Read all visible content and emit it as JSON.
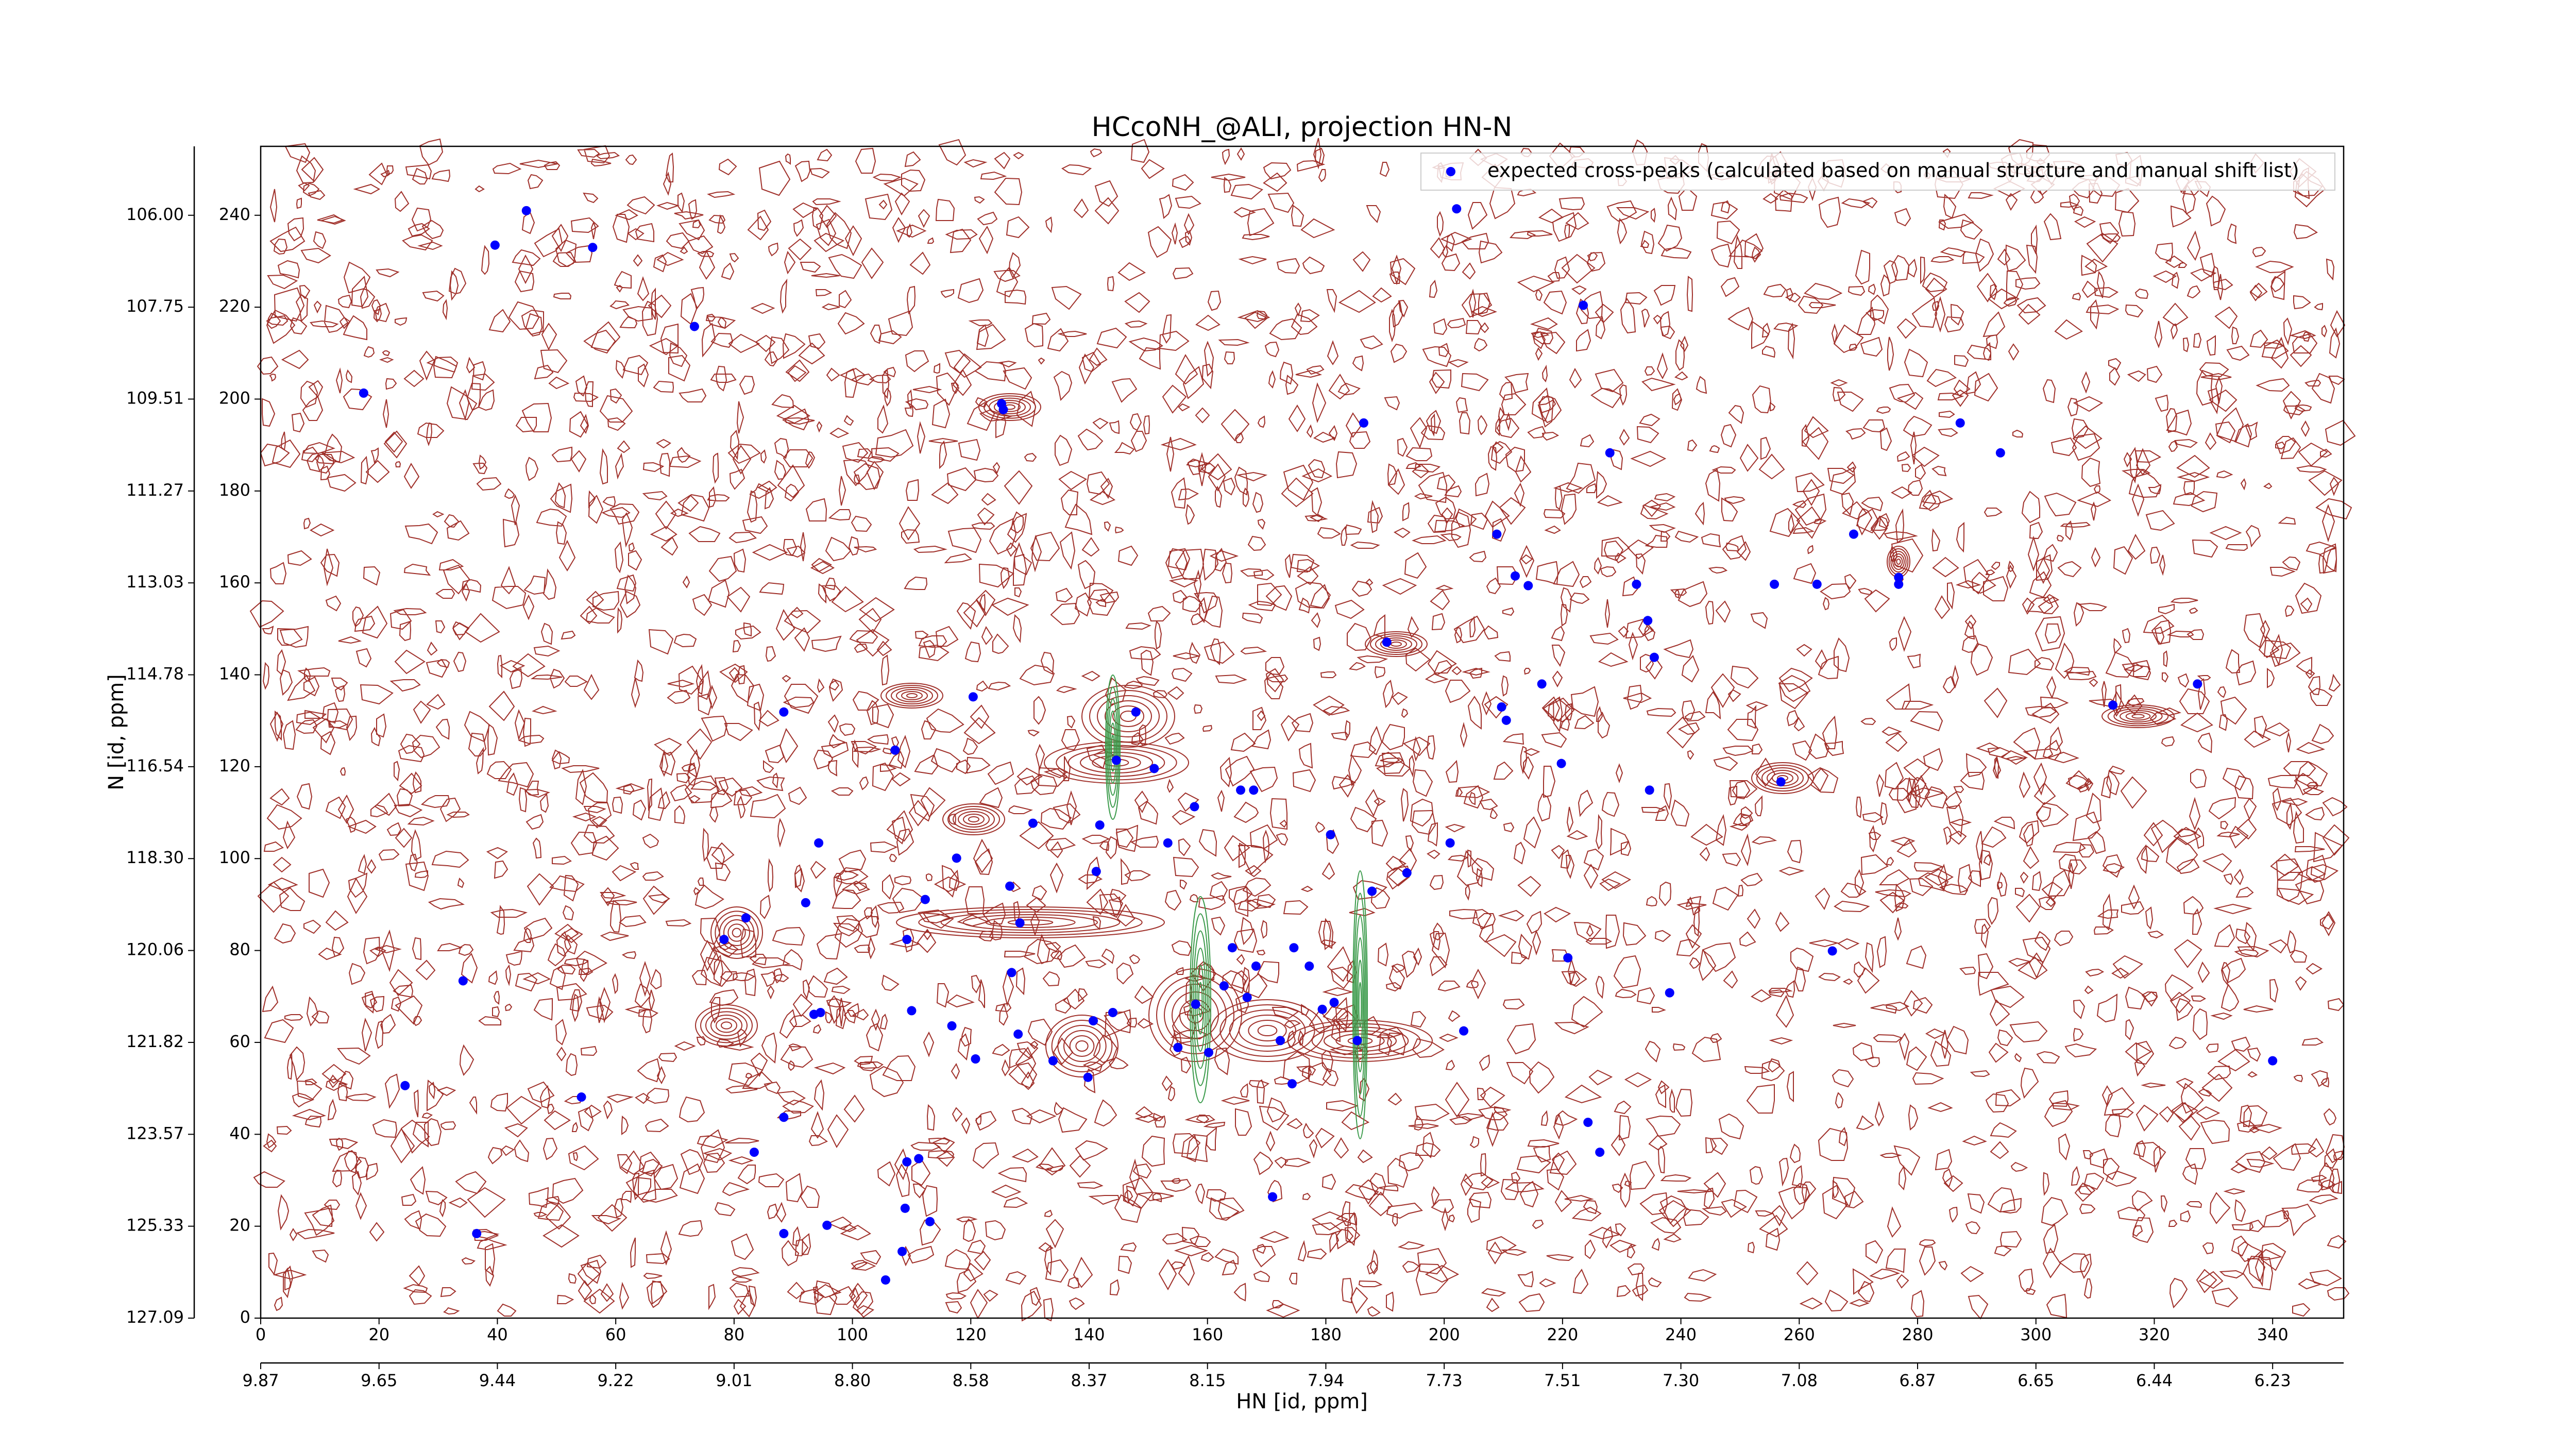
{
  "chart_data": {
    "type": "scatter",
    "title": "HCcoNH_@ALI, projection HN-N",
    "xlabel": "HN [id, ppm]",
    "ylabel": "N [id, ppm]",
    "xlim": [
      0,
      352
    ],
    "ylim": [
      0,
      255
    ],
    "xticks": [
      0,
      20,
      40,
      60,
      80,
      100,
      120,
      140,
      160,
      180,
      200,
      220,
      240,
      260,
      280,
      300,
      320,
      340
    ],
    "yticks": [
      0,
      20,
      40,
      60,
      80,
      100,
      120,
      140,
      160,
      180,
      200,
      220,
      240
    ],
    "x2ticks": [
      {
        "value": 0,
        "label": "9.87"
      },
      {
        "value": 20,
        "label": "9.65"
      },
      {
        "value": 40,
        "label": "9.44"
      },
      {
        "value": 60,
        "label": "9.22"
      },
      {
        "value": 80,
        "label": "9.01"
      },
      {
        "value": 100,
        "label": "8.80"
      },
      {
        "value": 120,
        "label": "8.58"
      },
      {
        "value": 140,
        "label": "8.37"
      },
      {
        "value": 160,
        "label": "8.15"
      },
      {
        "value": 180,
        "label": "7.94"
      },
      {
        "value": 200,
        "label": "7.73"
      },
      {
        "value": 220,
        "label": "7.51"
      },
      {
        "value": 240,
        "label": "7.30"
      },
      {
        "value": 260,
        "label": "7.08"
      },
      {
        "value": 280,
        "label": "6.87"
      },
      {
        "value": 300,
        "label": "6.65"
      },
      {
        "value": 320,
        "label": "6.44"
      },
      {
        "value": 340,
        "label": "6.23"
      }
    ],
    "y2ticks": [
      {
        "value": 0,
        "label": "127.09"
      },
      {
        "value": 20,
        "label": "125.33"
      },
      {
        "value": 40,
        "label": "123.57"
      },
      {
        "value": 60,
        "label": "121.82"
      },
      {
        "value": 80,
        "label": "120.06"
      },
      {
        "value": 100,
        "label": "118.30"
      },
      {
        "value": 120,
        "label": "116.54"
      },
      {
        "value": 140,
        "label": "114.78"
      },
      {
        "value": 160,
        "label": "113.03"
      },
      {
        "value": 180,
        "label": "111.27"
      },
      {
        "value": 200,
        "label": "109.51"
      },
      {
        "value": 220,
        "label": "107.75"
      },
      {
        "value": 240,
        "label": "106.00"
      }
    ],
    "legend": "upper right",
    "x": [
      44.9,
      39.6,
      56.1,
      73.3,
      17.4,
      125.2,
      125.5,
      186.4,
      223.5,
      228.0,
      202.1,
      287.2,
      294.0,
      208.9,
      212.0,
      214.2,
      232.5,
      255.8,
      263.0,
      269.2,
      276.8,
      276.8,
      234.4,
      235.5,
      190.3,
      216.5,
      327.3,
      313.0,
      209.7,
      210.5,
      120.4,
      88.4,
      107.2,
      147.9,
      144.6,
      151.0,
      219.8,
      256.9,
      165.6,
      167.8,
      157.8,
      234.7,
      141.8,
      130.5,
      94.3,
      153.3,
      180.8,
      201.0,
      117.6,
      141.2,
      193.7,
      187.8,
      126.6,
      112.3,
      92.1,
      128.3,
      82.0,
      78.3,
      109.2,
      164.2,
      174.6,
      265.6,
      220.9,
      168.2,
      177.2,
      126.9,
      34.2,
      162.8,
      166.7,
      238.1,
      181.4,
      158.0,
      179.4,
      144.0,
      110.0,
      93.5,
      94.6,
      140.7,
      116.8,
      128.0,
      203.3,
      172.3,
      185.3,
      155.0,
      160.2,
      120.8,
      133.9,
      340.0,
      139.8,
      174.3,
      24.4,
      54.2,
      88.4,
      224.3,
      83.4,
      226.3,
      111.2,
      109.2,
      171.0,
      108.9,
      113.1,
      95.7,
      88.4,
      36.5,
      108.4,
      105.6
    ],
    "series": [
      {
        "name": "expected cross-peaks (calculated based on manual structure and manual shift list)",
        "color": "#0000ff",
        "values": [
          241.0,
          233.5,
          233.0,
          215.8,
          201.3,
          199.0,
          197.7,
          194.8,
          220.4,
          188.3,
          241.4,
          194.8,
          188.3,
          170.6,
          161.5,
          159.4,
          159.7,
          159.7,
          159.7,
          170.6,
          161.2,
          159.7,
          151.8,
          143.8,
          147.1,
          138.0,
          138.0,
          133.4,
          133.0,
          130.1,
          135.2,
          131.9,
          123.6,
          131.9,
          121.4,
          119.6,
          120.7,
          116.7,
          114.9,
          114.9,
          111.3,
          114.9,
          107.3,
          107.7,
          103.4,
          103.4,
          105.2,
          103.4,
          100.1,
          97.2,
          96.9,
          92.9,
          94.0,
          91.1,
          90.4,
          86.0,
          87.1,
          82.4,
          82.4,
          80.6,
          80.6,
          79.9,
          78.4,
          76.6,
          76.6,
          75.2,
          73.4,
          72.3,
          69.8,
          70.8,
          68.7,
          68.3,
          67.2,
          66.5,
          66.9,
          66.1,
          66.5,
          64.7,
          63.6,
          61.8,
          62.5,
          60.4,
          60.4,
          58.9,
          57.8,
          56.4,
          56.0,
          56.0,
          52.4,
          51.0,
          50.6,
          48.1,
          43.7,
          42.6,
          36.1,
          36.1,
          34.7,
          34.0,
          26.4,
          23.9,
          21.0,
          20.2,
          18.4,
          18.4,
          14.5,
          8.3
        ]
      }
    ]
  }
}
